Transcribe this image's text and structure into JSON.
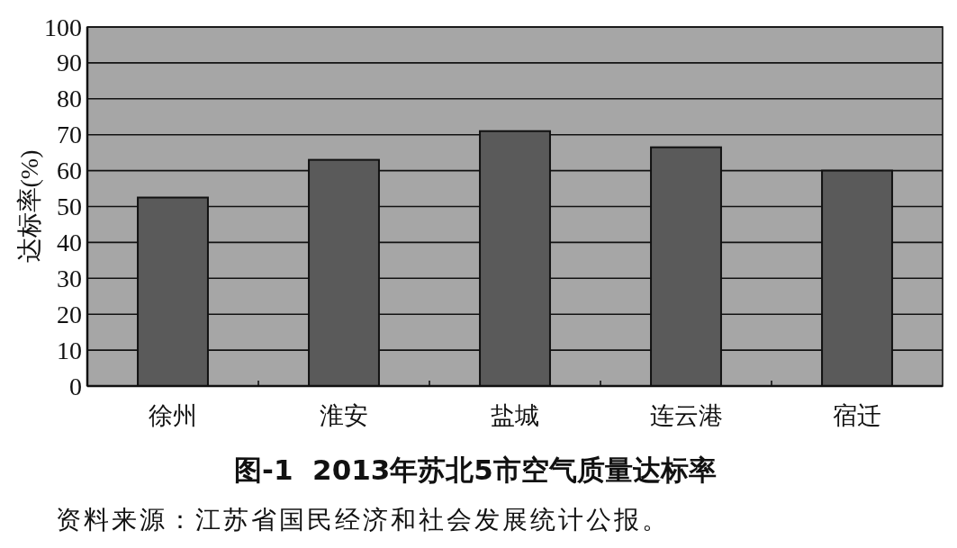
{
  "chart_data": {
    "type": "bar",
    "title": "图-1  2013年苏北5市空气质量达标率",
    "ylabel": "达标率(%)",
    "categories": [
      "徐州",
      "淮安",
      "盐城",
      "连云港",
      "宿迁"
    ],
    "values": [
      52.5,
      63,
      71,
      66.5,
      60
    ],
    "color": "#5a5a5a",
    "ylim": [
      0,
      100
    ],
    "yticks": [
      0,
      10,
      20,
      30,
      40,
      50,
      60,
      70,
      80,
      90,
      100
    ],
    "grid": "y",
    "annotations": [
      "资料来源：江苏省国民经济和社会发展统计公报。"
    ]
  }
}
